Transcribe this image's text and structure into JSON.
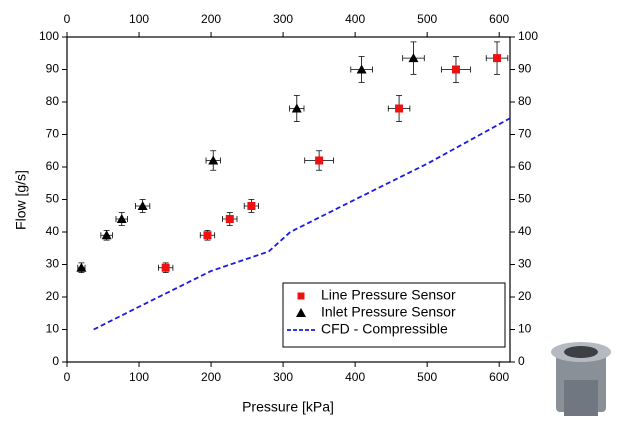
{
  "chart_data": {
    "type": "scatter",
    "x_label": "Pressure [kPa]",
    "y_label": "Flow [g/s]",
    "xlim": [
      0,
      615
    ],
    "ylim": [
      0,
      100
    ],
    "xticks": [
      0,
      100,
      200,
      300,
      400,
      500,
      600
    ],
    "yticks": [
      0,
      10,
      20,
      30,
      40,
      50,
      60,
      70,
      80,
      90,
      100
    ],
    "legend": "lower right",
    "series": [
      {
        "name": "Line Pressure Sensor",
        "color": "#ee1111",
        "marker": "square",
        "x": [
          137,
          195,
          226,
          256,
          350,
          461,
          540,
          597
        ],
        "values": [
          29,
          39,
          44,
          48,
          62,
          78,
          90,
          93.5
        ],
        "x_errors": [
          10,
          10,
          10,
          10,
          20,
          15,
          20,
          15
        ],
        "y_errors": [
          1.5,
          1.5,
          2,
          2,
          3,
          4,
          4,
          5
        ]
      },
      {
        "name": "Inlet Pressure Sensor",
        "color": "#000000",
        "marker": "triangle",
        "x": [
          20,
          55,
          76,
          105,
          203,
          319,
          409,
          481
        ],
        "values": [
          29,
          39,
          44,
          48,
          62,
          78,
          90,
          93.5
        ],
        "x_errors": [
          5,
          8,
          8,
          10,
          10,
          10,
          15,
          15
        ],
        "y_errors": [
          1.5,
          1.5,
          2,
          2,
          3,
          4,
          4,
          5
        ]
      },
      {
        "name": "CFD - Compressible",
        "color": "#1a1ae6",
        "marker": "dashed-line",
        "x": [
          37,
          100,
          200,
          280,
          310,
          400,
          500,
          615
        ],
        "values": [
          10,
          17,
          28,
          34,
          40,
          50,
          61,
          75
        ]
      }
    ]
  }
}
